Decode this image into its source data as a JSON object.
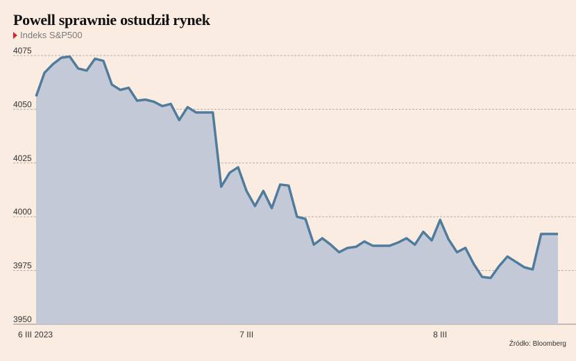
{
  "title": "Powell sprawnie ostudził rynek",
  "subtitle": "Indeks S&P500",
  "source": "Źródło: Bloomberg",
  "colors": {
    "line": "#4f7c9c",
    "area": "#c3c9d6",
    "background": "#fbece1",
    "marker": "#d8232a"
  },
  "chart_data": {
    "type": "area",
    "title": "Powell sprawnie ostudził rynek",
    "subtitle": "Indeks S&P500",
    "xlabel": "",
    "ylabel": "",
    "ylim": [
      3950,
      4075
    ],
    "yticks": [
      3950,
      3975,
      4000,
      4025,
      4050,
      4075
    ],
    "grid": true,
    "xtick_labels": [
      {
        "label": "6 III 2023",
        "index": 0
      },
      {
        "label": "7 III",
        "index": 25
      },
      {
        "label": "8 III",
        "index": 48
      }
    ],
    "series": [
      {
        "values": [
          4056,
          4067,
          4071,
          4074,
          4074.5,
          4069,
          4068,
          4073.5,
          4072.5,
          4061.5,
          4059,
          4060,
          4054,
          4054.5,
          4053.5,
          4051.5,
          4052.5,
          4045,
          4051,
          4048.5,
          4048.5,
          4048.5,
          4014,
          4020.5,
          4023,
          4012,
          4005,
          4012,
          4004,
          4015,
          4014.5,
          4000,
          3999,
          3987,
          3990,
          3987,
          3983.5,
          3985.5,
          3986,
          3988.5,
          3986.5,
          3986.5,
          3986.5,
          3988,
          3990,
          3987,
          3993,
          3989,
          3998.5,
          3989.5,
          3983.5,
          3985.5,
          3978,
          3972,
          3971.5,
          3977,
          3981.5,
          3979,
          3976.5,
          3975.5,
          3992,
          3992,
          3992
        ]
      }
    ]
  }
}
